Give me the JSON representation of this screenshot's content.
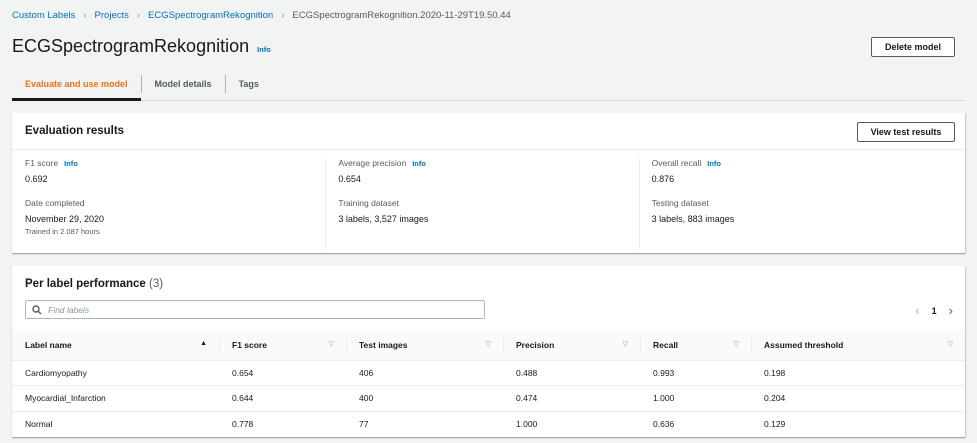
{
  "breadcrumb": [
    "Custom Labels",
    "Projects",
    "ECGSpectrogramRekognition"
  ],
  "breadcrumb_current": "ECGSpectrogramRekognition.2020-11-29T19.50.44",
  "title": "ECGSpectrogramRekognition",
  "info": "Info",
  "delete_button": "Delete model",
  "tabs": [
    "Evaluate and use model",
    "Model details",
    "Tags"
  ],
  "evaluation": {
    "heading": "Evaluation results",
    "view_button": "View test results",
    "f1_label": "F1 score",
    "f1_value": "0.692",
    "ap_label": "Average precision",
    "ap_value": "0.654",
    "recall_label": "Overall recall",
    "recall_value": "0.876",
    "date_label": "Date completed",
    "date_value": "November 29, 2020",
    "trained": "Trained in 2.087 hours",
    "train_label": "Training dataset",
    "train_value": "3 labels, 3,527 images",
    "test_label": "Testing dataset",
    "test_value": "3 labels, 883 images"
  },
  "per_label": {
    "heading": "Per label performance",
    "count": "(3)",
    "search_placeholder": "Find labels",
    "page": "1",
    "columns": [
      "Label name",
      "F1 score",
      "Test images",
      "Precision",
      "Recall",
      "Assumed threshold"
    ],
    "rows": [
      [
        "Cardiomyopathy",
        "0.654",
        "406",
        "0.488",
        "0.993",
        "0.198"
      ],
      [
        "Myocardial_Infarction",
        "0.644",
        "400",
        "0.474",
        "1.000",
        "0.204"
      ],
      [
        "Normal",
        "0.778",
        "77",
        "1.000",
        "0.636",
        "0.129"
      ]
    ]
  }
}
